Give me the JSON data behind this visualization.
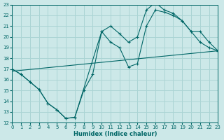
{
  "xlabel": "Humidex (Indice chaleur)",
  "bg_color": "#cce8e8",
  "grid_color": "#aad4d4",
  "line_color": "#006666",
  "xlim": [
    0,
    23
  ],
  "ylim": [
    12,
    23
  ],
  "xticks": [
    0,
    1,
    2,
    3,
    4,
    5,
    6,
    7,
    8,
    9,
    10,
    11,
    12,
    13,
    14,
    15,
    16,
    17,
    18,
    19,
    20,
    21,
    22,
    23
  ],
  "yticks": [
    12,
    13,
    14,
    15,
    16,
    17,
    18,
    19,
    20,
    21,
    22,
    23
  ],
  "line1_x": [
    0,
    1,
    2,
    3,
    4,
    5,
    6,
    7,
    8,
    9,
    10,
    11,
    12,
    13,
    14,
    15,
    16,
    17,
    18,
    19,
    20,
    21,
    22,
    23
  ],
  "line1_y": [
    17.0,
    16.5,
    15.8,
    15.1,
    13.8,
    13.2,
    12.4,
    12.5,
    15.0,
    16.5,
    20.5,
    19.5,
    19.0,
    17.2,
    17.5,
    21.0,
    22.5,
    22.3,
    22.0,
    21.5,
    20.5,
    19.5,
    19.0,
    18.7
  ],
  "line2_x": [
    0,
    1,
    2,
    3,
    4,
    5,
    6,
    7,
    10,
    11,
    12,
    13,
    14,
    15,
    16,
    17,
    18,
    19,
    20,
    21,
    22,
    23
  ],
  "line2_y": [
    17.0,
    16.5,
    15.8,
    15.1,
    13.8,
    13.2,
    12.4,
    12.5,
    20.5,
    21.0,
    20.3,
    19.5,
    20.0,
    22.5,
    23.2,
    22.5,
    22.2,
    21.5,
    20.5,
    20.5,
    19.5,
    18.7
  ],
  "line3_x": [
    0,
    23
  ],
  "line3_y": [
    16.8,
    18.7
  ]
}
